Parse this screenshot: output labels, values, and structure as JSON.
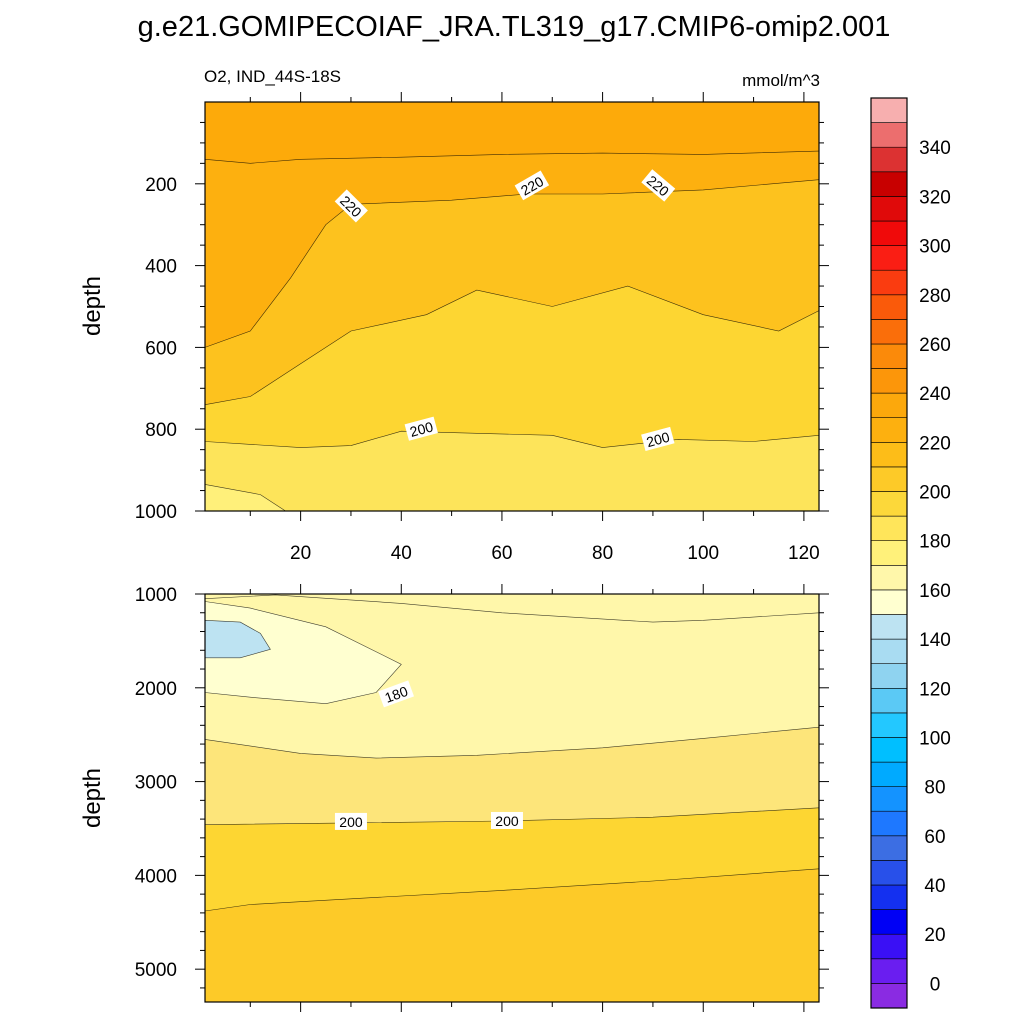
{
  "chart_data": [
    {
      "type": "contour",
      "title": "g.e21.GOMIPECOIAF_JRA.TL319_g17.CMIP6-omip2.001",
      "subtitle_left": "O2, IND_44S-18S",
      "subtitle_right": "mmol/m^3",
      "ylabel": "depth",
      "xlim": [
        1,
        123
      ],
      "ylim": [
        0,
        1000
      ],
      "y_inverted": true,
      "xticks": [
        20,
        40,
        60,
        80,
        100,
        120
      ],
      "xtick_labels": [
        "20",
        "40",
        "60",
        "80",
        "100",
        "120"
      ],
      "yticks": [
        200,
        400,
        600,
        800,
        1000
      ],
      "ytick_labels": [
        "200",
        "400",
        "600",
        "800",
        "1000"
      ],
      "contour_labels": [
        {
          "text": "220",
          "x": 30,
          "y": 255,
          "angle": 45
        },
        {
          "text": "220",
          "x": 66,
          "y": 205,
          "angle": -30
        },
        {
          "text": "220",
          "x": 91,
          "y": 205,
          "angle": 40
        },
        {
          "text": "200",
          "x": 44,
          "y": 800,
          "angle": -15
        },
        {
          "text": "200",
          "x": 91,
          "y": 825,
          "angle": -15
        }
      ],
      "contour_lines": [
        {
          "level": 230,
          "points": [
            [
              1,
              140
            ],
            [
              10,
              150
            ],
            [
              20,
              140
            ],
            [
              40,
              135
            ],
            [
              60,
              128
            ],
            [
              80,
              125
            ],
            [
              100,
              128
            ],
            [
              123,
              120
            ]
          ]
        },
        {
          "level": 220,
          "points": [
            [
              1,
              600
            ],
            [
              10,
              560
            ],
            [
              18,
              430
            ],
            [
              25,
              300
            ],
            [
              30,
              250
            ],
            [
              50,
              240
            ],
            [
              65,
              225
            ],
            [
              80,
              225
            ],
            [
              100,
              215
            ],
            [
              123,
              190
            ]
          ]
        },
        {
          "level": 210,
          "points": [
            [
              1,
              740
            ],
            [
              10,
              720
            ],
            [
              20,
              640
            ],
            [
              30,
              560
            ],
            [
              45,
              520
            ],
            [
              55,
              460
            ],
            [
              70,
              500
            ],
            [
              85,
              450
            ],
            [
              100,
              520
            ],
            [
              115,
              560
            ],
            [
              123,
              510
            ]
          ]
        },
        {
          "level": 200,
          "points": [
            [
              1,
              830
            ],
            [
              20,
              845
            ],
            [
              30,
              840
            ],
            [
              40,
              805
            ],
            [
              55,
              810
            ],
            [
              70,
              815
            ],
            [
              80,
              845
            ],
            [
              95,
              825
            ],
            [
              110,
              830
            ],
            [
              123,
              815
            ]
          ]
        },
        {
          "level": 190,
          "points": [
            [
              1,
              935
            ],
            [
              12,
              960
            ],
            [
              17,
              1000
            ]
          ]
        }
      ]
    },
    {
      "type": "contour",
      "ylabel": "depth",
      "xlim": [
        1,
        123
      ],
      "ylim": [
        1000,
        5350
      ],
      "y_inverted": true,
      "yticks": [
        1000,
        2000,
        3000,
        4000,
        5000
      ],
      "ytick_labels": [
        "1000",
        "2000",
        "3000",
        "4000",
        "5000"
      ],
      "contour_labels": [
        {
          "text": "180",
          "x": 39,
          "y": 2070,
          "angle": -20
        },
        {
          "text": "200",
          "x": 30,
          "y": 3430,
          "angle": 0
        },
        {
          "text": "200",
          "x": 61,
          "y": 3420,
          "angle": 0
        }
      ],
      "contour_lines": [
        {
          "level": 190,
          "points": [
            [
              1,
              1050
            ],
            [
              15,
              1010
            ],
            [
              40,
              1100
            ],
            [
              60,
              1200
            ],
            [
              90,
              1300
            ],
            [
              100,
              1280
            ],
            [
              123,
              1200
            ]
          ]
        },
        {
          "level": 180,
          "points": [
            [
              1,
              1080
            ],
            [
              10,
              1150
            ],
            [
              25,
              1350
            ],
            [
              40,
              1750
            ],
            [
              35,
              2050
            ],
            [
              25,
              2170
            ],
            [
              10,
              2100
            ],
            [
              1,
              2050
            ]
          ]
        },
        {
          "level": 170,
          "points": [
            [
              1,
              1280
            ],
            [
              8,
              1300
            ],
            [
              12,
              1420
            ],
            [
              14,
              1590
            ],
            [
              8,
              1680
            ],
            [
              1,
              1680
            ]
          ]
        },
        {
          "level": 190,
          "points": [
            [
              1,
              2550
            ],
            [
              20,
              2700
            ],
            [
              35,
              2750
            ],
            [
              55,
              2720
            ],
            [
              80,
              2640
            ],
            [
              100,
              2540
            ],
            [
              123,
              2420
            ]
          ]
        },
        {
          "level": 200,
          "points": [
            [
              1,
              3460
            ],
            [
              30,
              3440
            ],
            [
              60,
              3420
            ],
            [
              90,
              3380
            ],
            [
              123,
              3280
            ]
          ]
        },
        {
          "level": 210,
          "points": [
            [
              1,
              4380
            ],
            [
              10,
              4310
            ],
            [
              30,
              4250
            ],
            [
              60,
              4160
            ],
            [
              90,
              4060
            ],
            [
              123,
              3930
            ]
          ]
        }
      ]
    }
  ],
  "colorbar": {
    "tick_labels": [
      "0",
      "20",
      "40",
      "60",
      "80",
      "100",
      "120",
      "140",
      "160",
      "180",
      "200",
      "220",
      "240",
      "260",
      "280",
      "300",
      "320",
      "340"
    ],
    "colors": [
      "#8a2be2",
      "#6a1ef0",
      "#3a10f5",
      "#0000f5",
      "#1430f0",
      "#2850ea",
      "#3c6ee3",
      "#1e78ff",
      "#1493ff",
      "#00aaff",
      "#00bfff",
      "#23c8ff",
      "#5bc9f5",
      "#8fd3f0",
      "#a9dcf2",
      "#bde3f2",
      "#ffffd0",
      "#fff7aa",
      "#fff17a",
      "#ffe55a",
      "#fcd83a",
      "#fdca28",
      "#fdbd18",
      "#fdb00f",
      "#fca80c",
      "#fc960a",
      "#fb8a0a",
      "#fa6e0a",
      "#fa5a0a",
      "#fa3c10",
      "#fa1e14",
      "#f00a0a",
      "#e00a0a",
      "#c80000",
      "#dc3232",
      "#ec6e6e",
      "#f7afaf"
    ]
  }
}
